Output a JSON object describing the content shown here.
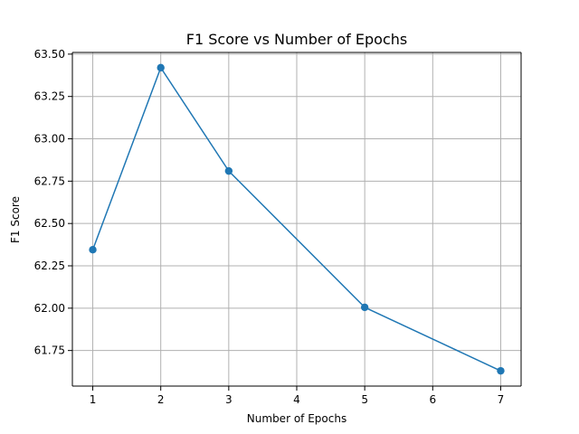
{
  "chart_data": {
    "type": "line",
    "title": "F1 Score vs Number of Epochs",
    "xlabel": "Number of Epochs",
    "ylabel": "F1 Score",
    "series": [
      {
        "x": [
          1,
          2,
          3,
          5,
          7
        ],
        "values": [
          62.345,
          63.42,
          62.81,
          62.005,
          61.63
        ]
      }
    ],
    "x_ticks": [
      "1",
      "2",
      "3",
      "4",
      "5",
      "6",
      "7"
    ],
    "y_ticks": [
      "61.75",
      "62.00",
      "62.25",
      "62.50",
      "62.75",
      "63.00",
      "63.25",
      "63.50"
    ],
    "xlim": [
      0.7,
      7.3
    ],
    "ylim": [
      61.54,
      63.51
    ],
    "grid": true,
    "series_color": "#1f77b4"
  }
}
